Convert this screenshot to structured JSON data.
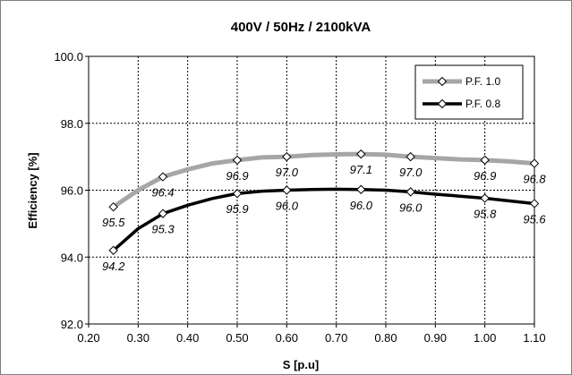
{
  "chart_data": {
    "type": "line",
    "title": "400V / 50Hz / 2100kVA",
    "xlabel": "S [p.u]",
    "ylabel": "Efficiency [%]",
    "xlim": [
      0.2,
      1.1
    ],
    "ylim": [
      92.0,
      100.0
    ],
    "xticks": [
      "0.20",
      "0.30",
      "0.40",
      "0.50",
      "0.60",
      "0.70",
      "0.80",
      "0.90",
      "1.00",
      "1.10"
    ],
    "xtick_values": [
      0.2,
      0.3,
      0.4,
      0.5,
      0.6,
      0.7,
      0.8,
      0.9,
      1.0,
      1.1
    ],
    "yticks": [
      "92.0",
      "94.0",
      "96.0",
      "98.0",
      "100.0"
    ],
    "ytick_values": [
      92,
      94,
      96,
      98,
      100
    ],
    "grid": true,
    "legend_position": "top-right",
    "series": [
      {
        "name": "P.F. 1.0",
        "color": "#a6a6a6",
        "markers": [
          0.25,
          0.35,
          0.5,
          0.6,
          0.75,
          0.85,
          1.0,
          1.1
        ],
        "x": [
          0.25,
          0.3,
          0.35,
          0.4,
          0.45,
          0.5,
          0.55,
          0.6,
          0.65,
          0.7,
          0.75,
          0.8,
          0.85,
          0.9,
          0.95,
          1.0,
          1.05,
          1.1
        ],
        "y": [
          95.5,
          96.0,
          96.4,
          96.62,
          96.8,
          96.9,
          96.98,
          97.0,
          97.05,
          97.07,
          97.08,
          97.06,
          97.0,
          96.96,
          96.92,
          96.9,
          96.86,
          96.8
        ],
        "labels": [
          {
            "x": 0.25,
            "text": "95.5",
            "pos": "below"
          },
          {
            "x": 0.35,
            "text": "96.4",
            "pos": "below"
          },
          {
            "x": 0.5,
            "text": "96.9",
            "pos": "below"
          },
          {
            "x": 0.6,
            "text": "97.0",
            "pos": "below"
          },
          {
            "x": 0.75,
            "text": "97.1",
            "pos": "below"
          },
          {
            "x": 0.85,
            "text": "97.0",
            "pos": "below"
          },
          {
            "x": 1.0,
            "text": "96.9",
            "pos": "below"
          },
          {
            "x": 1.1,
            "text": "96.8",
            "pos": "below"
          }
        ]
      },
      {
        "name": "P.F. 0.8",
        "color": "#000000",
        "markers": [
          0.25,
          0.35,
          0.5,
          0.6,
          0.75,
          0.85,
          1.0,
          1.1
        ],
        "x": [
          0.25,
          0.3,
          0.35,
          0.4,
          0.45,
          0.5,
          0.55,
          0.6,
          0.65,
          0.7,
          0.75,
          0.8,
          0.85,
          0.9,
          0.95,
          1.0,
          1.05,
          1.1
        ],
        "y": [
          94.2,
          94.85,
          95.3,
          95.55,
          95.75,
          95.9,
          95.97,
          96.0,
          96.02,
          96.03,
          96.02,
          96.0,
          95.95,
          95.88,
          95.82,
          95.76,
          95.68,
          95.6
        ],
        "labels": [
          {
            "x": 0.25,
            "text": "94.2",
            "pos": "below"
          },
          {
            "x": 0.35,
            "text": "95.3",
            "pos": "below"
          },
          {
            "x": 0.5,
            "text": "95.9",
            "pos": "below"
          },
          {
            "x": 0.6,
            "text": "96.0",
            "pos": "below"
          },
          {
            "x": 0.75,
            "text": "96.0",
            "pos": "below"
          },
          {
            "x": 0.85,
            "text": "96.0",
            "pos": "below"
          },
          {
            "x": 1.0,
            "text": "95.8",
            "pos": "below"
          },
          {
            "x": 1.1,
            "text": "95.6",
            "pos": "below"
          }
        ]
      }
    ]
  }
}
